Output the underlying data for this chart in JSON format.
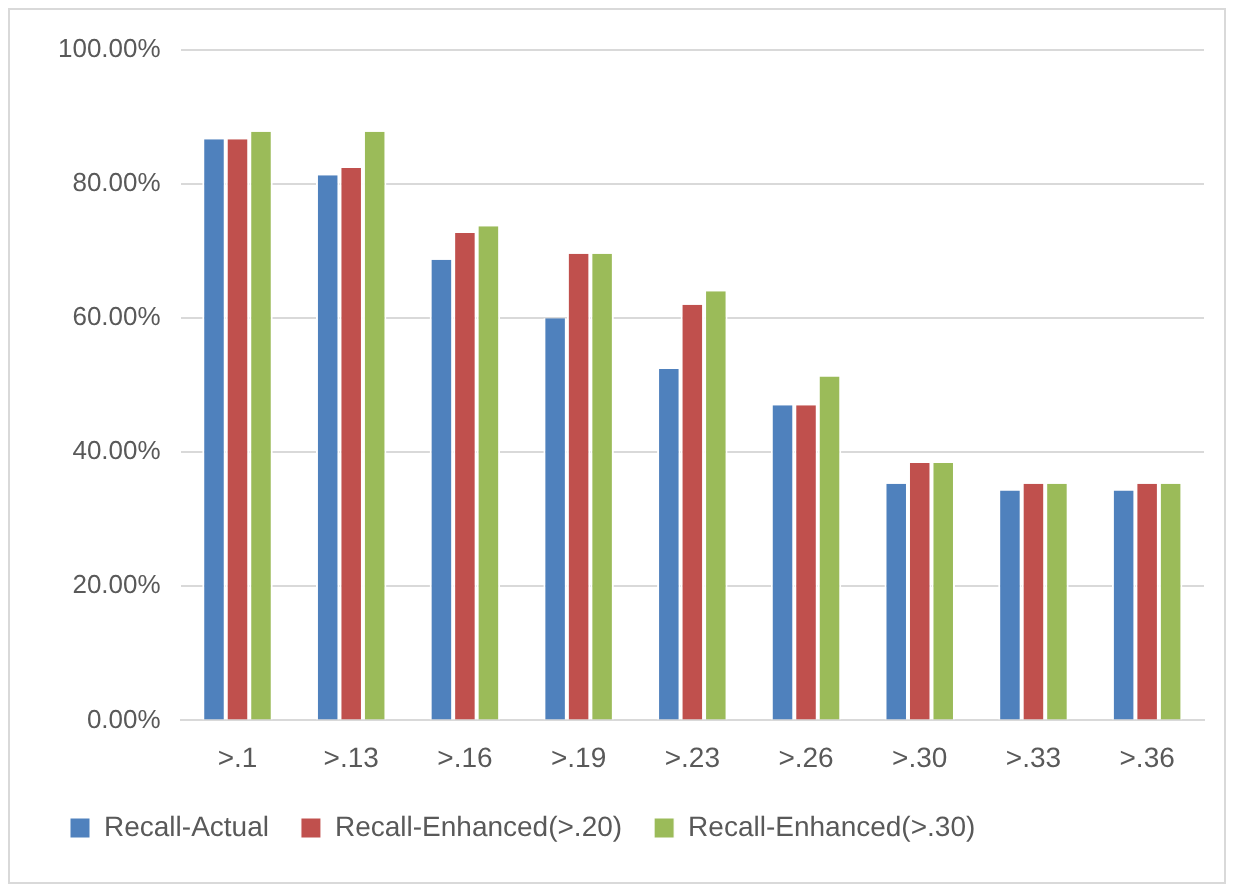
{
  "chart_data": {
    "type": "bar",
    "categories": [
      ">.1",
      ">.13",
      ">.16",
      ">.19",
      ">.23",
      ">.26",
      ">.30",
      ">.33",
      ">.36"
    ],
    "series": [
      {
        "name": "Recall-Actual",
        "color": "#4f81bd",
        "values": [
          86.7,
          81.3,
          68.7,
          60,
          52.4,
          47,
          35.3,
          34.3,
          34.3
        ]
      },
      {
        "name": "Recall-Enhanced(>.20)",
        "color": "#c0504d",
        "values": [
          86.7,
          82.4,
          72.7,
          69.6,
          62,
          47,
          38.4,
          35.3,
          35.3
        ]
      },
      {
        "name": "Recall-Enhanced(>.30)",
        "color": "#9bbb59",
        "values": [
          87.8,
          87.8,
          73.7,
          69.6,
          64,
          51.3,
          38.4,
          35.3,
          35.3
        ]
      }
    ],
    "ylim": [
      0,
      100
    ],
    "yticks": [
      {
        "value": 0,
        "label": "0.00%"
      },
      {
        "value": 20,
        "label": "20.00%"
      },
      {
        "value": 40,
        "label": "40.00%"
      },
      {
        "value": 60,
        "label": "60.00%"
      },
      {
        "value": 80,
        "label": "80.00%"
      },
      {
        "value": 100,
        "label": "100.00%"
      }
    ],
    "grid": "y",
    "legend": "bottom"
  }
}
